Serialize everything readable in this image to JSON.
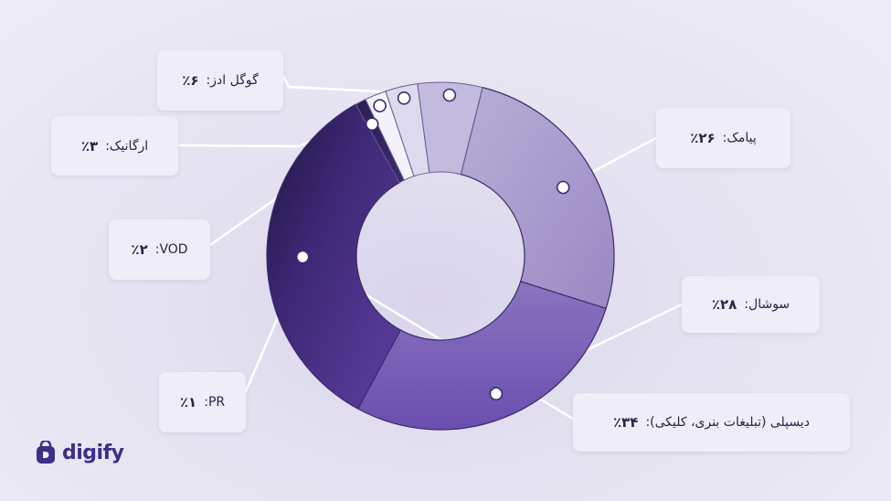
{
  "brand": {
    "name": "digify",
    "color": "#3f2e86",
    "icon": "bag-logo-icon"
  },
  "chart_data": {
    "type": "pie",
    "style": "donut",
    "categories": [
      "پیامک",
      "سوشال",
      "دیسپلی (تبلیغات بنری، کلیکی)",
      "PR",
      "VOD",
      "ارگانیک",
      "گوگل ادز"
    ],
    "values": [
      26,
      28,
      34,
      1,
      2,
      3,
      6
    ],
    "labels": [
      {
        "name": "پیامک:",
        "pct": "٪۲۶"
      },
      {
        "name": "سوشال:",
        "pct": "٪۲۸"
      },
      {
        "name": "دیسپلی (تبلیغات بنری، کلیکی):",
        "pct": "٪۳۴"
      },
      {
        "name": "PR:",
        "pct": "٪۱"
      },
      {
        "name": "VOD:",
        "pct": "٪۲"
      },
      {
        "name": "ارگانیک:",
        "pct": "٪۳"
      },
      {
        "name": "گوگل ادز:",
        "pct": "٪۶"
      }
    ],
    "colors": [
      "#a89bcb",
      "#7c62b6",
      "#54388f",
      "#3a2770",
      "#f3f1f9",
      "#dedaee",
      "#c3bbdd"
    ],
    "legend": "callout-boxes"
  }
}
